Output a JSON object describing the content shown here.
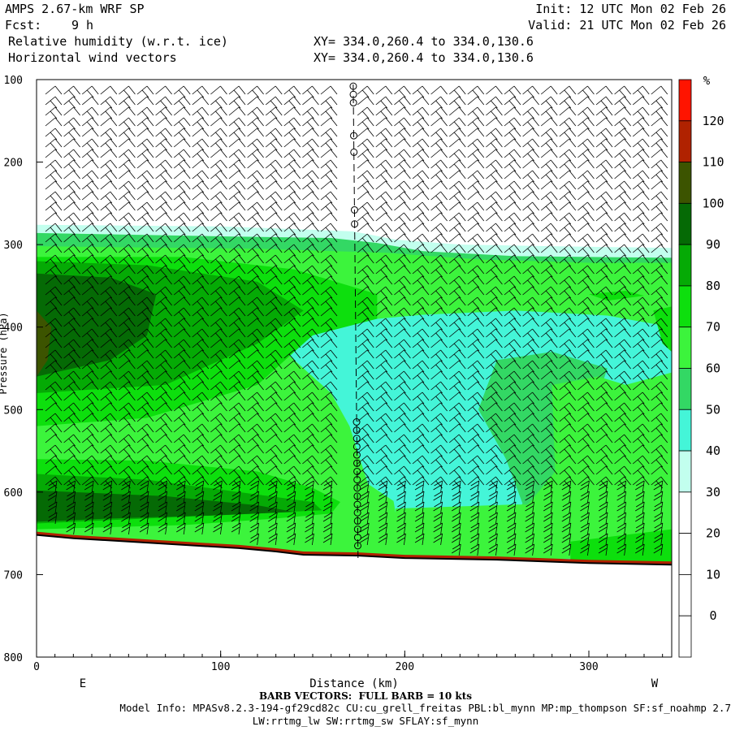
{
  "header": {
    "model": "AMPS 2.67-km WRF SP",
    "fcst_label": "Fcst:",
    "fcst_value": "9 h",
    "field1": "Relative humidity (w.r.t. ice)",
    "field2": "Horizontal wind vectors",
    "xy1": "XY= 334.0,260.4 to 334.0,130.6",
    "xy2": "XY= 334.0,260.4 to 334.0,130.6",
    "init": "Init: 12 UTC Mon 02 Feb 26",
    "valid": "Valid: 21 UTC Mon 02 Feb 26"
  },
  "footer": {
    "barb": "BARB VECTORS:  FULL BARB = 10 kts",
    "model_info": "Model Info: MPASv8.2.3-194-gf29cd82c CU:cu_grell_freitas PBL:bl_mynn MP:mp_thompson SF:sf_noahmp 2.7",
    "model_info2": "LW:rrtmg_lw SW:rrtmg_sw SFLAY:sf_mynn"
  },
  "chart_data": {
    "type": "heatmap",
    "title": "Relative humidity (w.r.t. ice)",
    "xlabel": "Distance (km)",
    "ylabel": "Pressure (hPa)",
    "xlim": [
      0,
      345
    ],
    "ylim": [
      800,
      100
    ],
    "y_inverted": true,
    "x_ticks": [
      0,
      100,
      200,
      300
    ],
    "y_ticks": [
      100,
      200,
      300,
      400,
      500,
      600,
      700,
      800
    ],
    "x_end_labels": [
      "E",
      "W"
    ],
    "colorbar": {
      "unit": "%",
      "levels": [
        0,
        10,
        20,
        30,
        40,
        50,
        60,
        70,
        80,
        90,
        100,
        110,
        120
      ],
      "colors": [
        "#ffffff",
        "#ffffff",
        "#ffffff",
        "#ffffff",
        "#c2ffee",
        "#44f5d8",
        "#33d864",
        "#3cf43c",
        "#0ddf0d",
        "#05aa05",
        "#056a05",
        "#3c5400",
        "#b02200",
        "#ff1400"
      ]
    },
    "fill_colors": {
      "c30": "#c2ffee",
      "c40": "#44f5d8",
      "c50": "#33d864",
      "c60": "#3cf43c",
      "c70": "#0ddf0d",
      "c80": "#05aa05",
      "c90": "#056a05",
      "c100": "#3c5400",
      "c110": "#b02200",
      "c120": "#ff1400"
    },
    "terrain": [
      {
        "x": 0,
        "p": 652
      },
      {
        "x": 20,
        "p": 656
      },
      {
        "x": 50,
        "p": 660
      },
      {
        "x": 80,
        "p": 664
      },
      {
        "x": 110,
        "p": 668
      },
      {
        "x": 130,
        "p": 672
      },
      {
        "x": 145,
        "p": 676
      },
      {
        "x": 175,
        "p": 677
      },
      {
        "x": 200,
        "p": 680
      },
      {
        "x": 250,
        "p": 682
      },
      {
        "x": 300,
        "p": 686
      },
      {
        "x": 345,
        "p": 688
      }
    ],
    "vertical_line_x": 172,
    "calm_markers_p": [
      108,
      118,
      128,
      168,
      188,
      258,
      275,
      515,
      525,
      535,
      545,
      555,
      565,
      575,
      585,
      595,
      605,
      615,
      625,
      635,
      645,
      655,
      665
    ]
  }
}
